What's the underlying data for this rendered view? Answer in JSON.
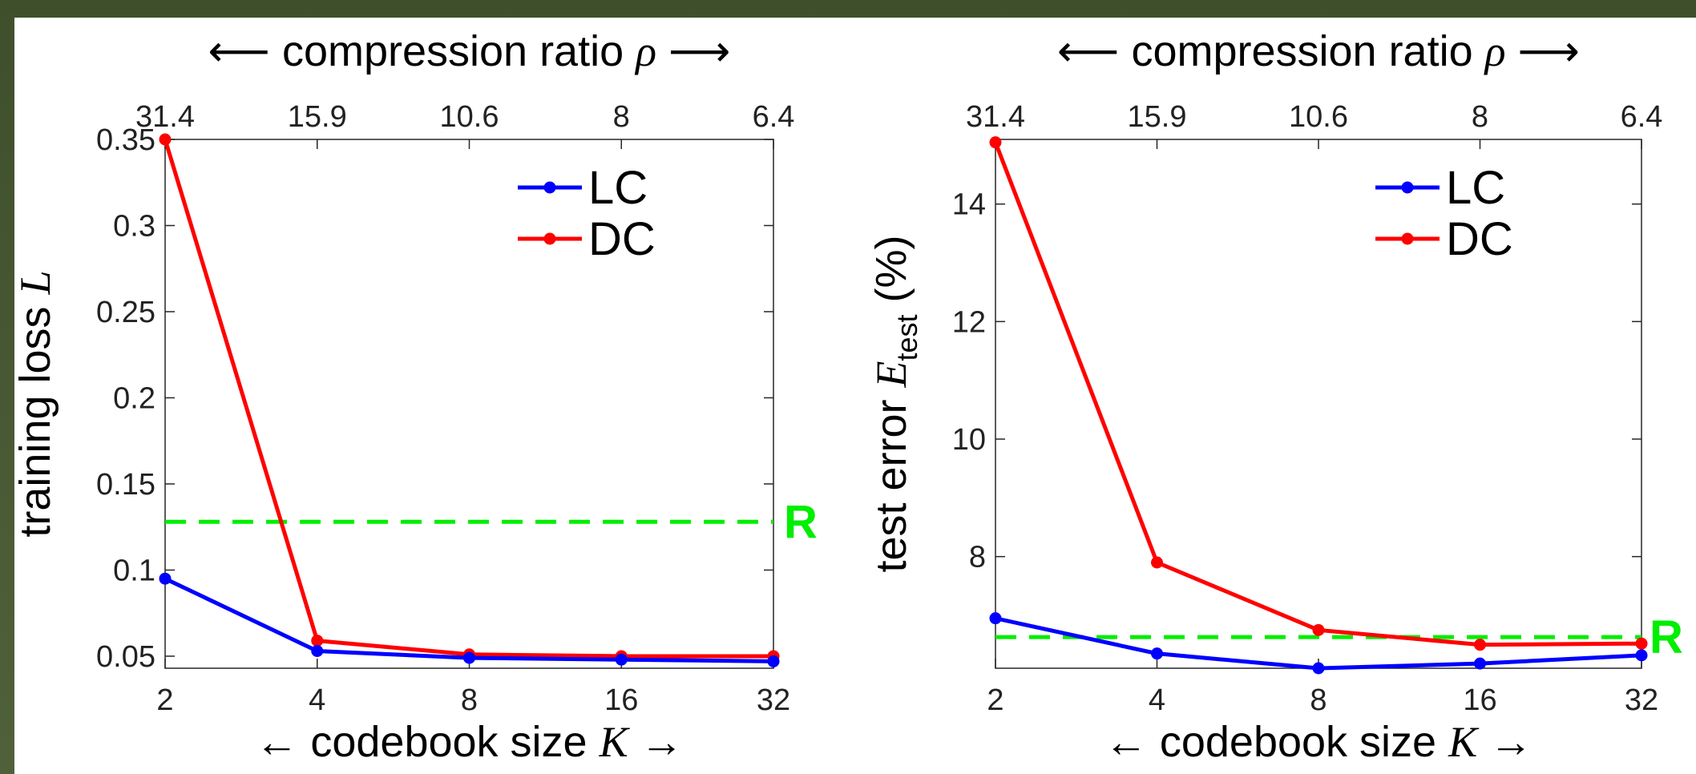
{
  "chart_data": [
    {
      "type": "line",
      "x": [
        2,
        4,
        8,
        16,
        32
      ],
      "categories": [
        "2",
        "4",
        "8",
        "16",
        "32"
      ],
      "top_axis": {
        "label_pre": "⟵ compression ratio ",
        "label_sym": "ρ",
        "label_post": " ⟶",
        "ticks": [
          "31.4",
          "15.9",
          "10.6",
          "8",
          "6.4"
        ]
      },
      "xlabel": {
        "pre": "← codebook size ",
        "sym": "K",
        "post": " →"
      },
      "ylabel": {
        "pre": "training loss ",
        "sym": "L",
        "sub": "",
        "post": ""
      },
      "yticks": [
        0.05,
        0.1,
        0.15,
        0.2,
        0.25,
        0.3,
        0.35
      ],
      "ytick_labels": [
        "0.05",
        "0.1",
        "0.15",
        "0.2",
        "0.25",
        "0.3",
        "0.35"
      ],
      "ylim": [
        0.043,
        0.35
      ],
      "series": [
        {
          "name": "LC",
          "color": "#0000ff",
          "values": [
            0.095,
            0.053,
            0.049,
            0.048,
            0.047
          ]
        },
        {
          "name": "DC",
          "color": "#ff0000",
          "values": [
            0.35,
            0.059,
            0.051,
            0.05,
            0.05
          ]
        }
      ],
      "reference": {
        "label": "R",
        "value": 0.128,
        "color": "#00ee00"
      }
    },
    {
      "type": "line",
      "x": [
        2,
        4,
        8,
        16,
        32
      ],
      "categories": [
        "2",
        "4",
        "8",
        "16",
        "32"
      ],
      "top_axis": {
        "label_pre": "⟵ compression ratio ",
        "label_sym": "ρ",
        "label_post": " ⟶",
        "ticks": [
          "31.4",
          "15.9",
          "10.6",
          "8",
          "6.4"
        ]
      },
      "xlabel": {
        "pre": "← codebook size ",
        "sym": "K",
        "post": " →"
      },
      "ylabel": {
        "pre": "test error ",
        "sym": "E",
        "sub": "test",
        "post": " (%)"
      },
      "yticks": [
        8,
        10,
        12,
        14
      ],
      "ytick_labels": [
        "8",
        "10",
        "12",
        "14"
      ],
      "ylim": [
        6.1,
        15.1
      ],
      "series": [
        {
          "name": "LC",
          "color": "#0000ff",
          "values": [
            6.95,
            6.35,
            6.1,
            6.18,
            6.32
          ]
        },
        {
          "name": "DC",
          "color": "#ff0000",
          "values": [
            15.05,
            7.9,
            6.75,
            6.5,
            6.52
          ]
        }
      ],
      "reference": {
        "label": "R",
        "value": 6.63,
        "color": "#00ee00"
      }
    }
  ]
}
